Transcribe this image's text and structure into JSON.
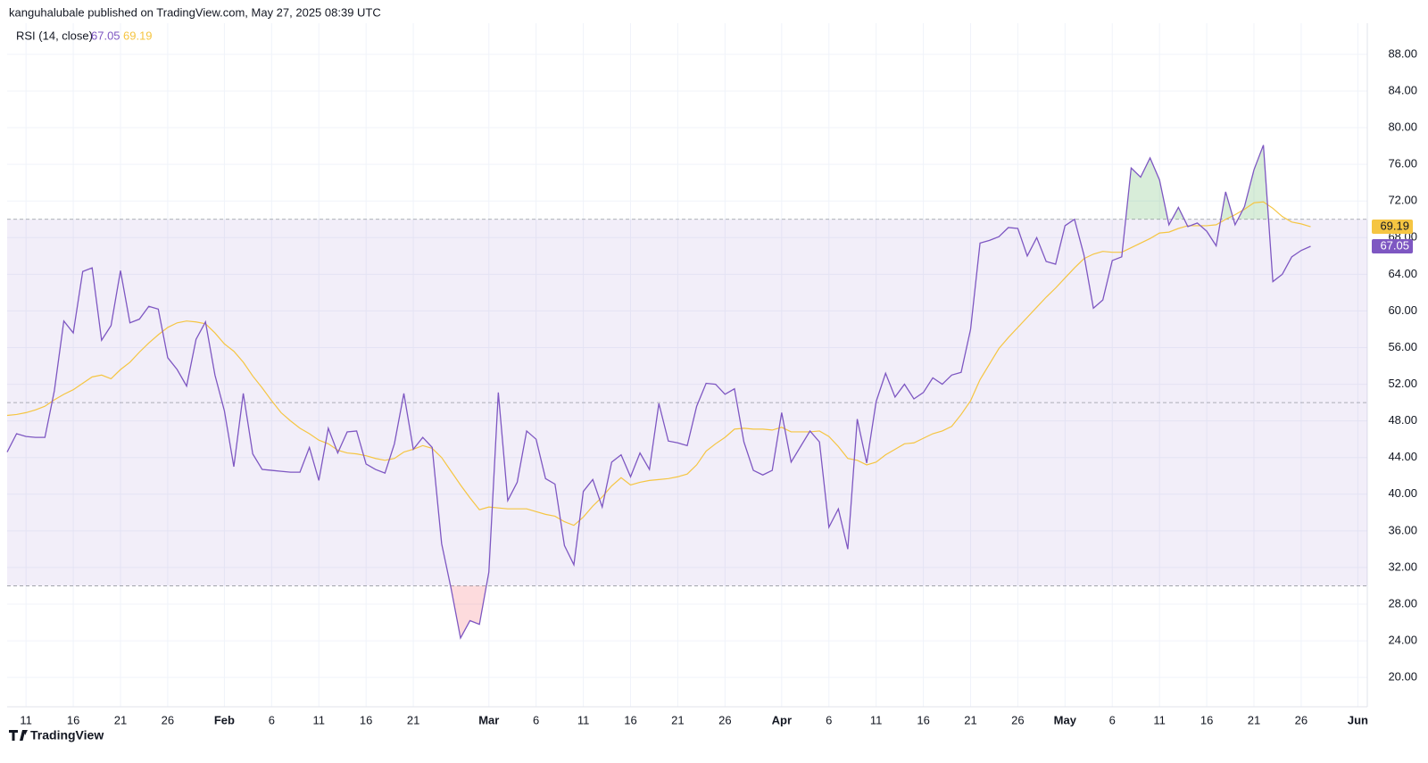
{
  "header": {
    "published": "kanguhalubale published on TradingView.com, May 27, 2025 08:39 UTC",
    "footer": "TradingView"
  },
  "chart_data": {
    "type": "line",
    "title": "RSI (14, close)",
    "x": [
      "01-09",
      "01-10",
      "01-11",
      "01-12",
      "01-13",
      "01-14",
      "01-15",
      "01-16",
      "01-17",
      "01-18",
      "01-19",
      "01-20",
      "01-21",
      "01-22",
      "01-23",
      "01-24",
      "01-25",
      "01-26",
      "01-27",
      "01-28",
      "01-29",
      "01-30",
      "01-31",
      "02-01",
      "02-02",
      "02-03",
      "02-04",
      "02-05",
      "02-06",
      "02-07",
      "02-08",
      "02-09",
      "02-10",
      "02-11",
      "02-12",
      "02-13",
      "02-14",
      "02-15",
      "02-16",
      "02-17",
      "02-18",
      "02-19",
      "02-20",
      "02-21",
      "02-22",
      "02-23",
      "02-24",
      "02-25",
      "02-26",
      "02-27",
      "02-28",
      "03-01",
      "03-02",
      "03-03",
      "03-04",
      "03-05",
      "03-06",
      "03-07",
      "03-08",
      "03-09",
      "03-10",
      "03-11",
      "03-12",
      "03-13",
      "03-14",
      "03-15",
      "03-16",
      "03-17",
      "03-18",
      "03-19",
      "03-20",
      "03-21",
      "03-22",
      "03-23",
      "03-24",
      "03-25",
      "03-26",
      "03-27",
      "03-28",
      "03-29",
      "03-30",
      "03-31",
      "04-01",
      "04-02",
      "04-03",
      "04-04",
      "04-05",
      "04-06",
      "04-07",
      "04-08",
      "04-09",
      "04-10",
      "04-11",
      "04-12",
      "04-13",
      "04-14",
      "04-15",
      "04-16",
      "04-17",
      "04-18",
      "04-19",
      "04-20",
      "04-21",
      "04-22",
      "04-23",
      "04-24",
      "04-25",
      "04-26",
      "04-27",
      "04-28",
      "04-29",
      "04-30",
      "05-01",
      "05-02",
      "05-03",
      "05-04",
      "05-05",
      "05-06",
      "05-07",
      "05-08",
      "05-09",
      "05-10",
      "05-11",
      "05-12",
      "05-13",
      "05-14",
      "05-15",
      "05-16",
      "05-17",
      "05-18",
      "05-19",
      "05-20",
      "05-21",
      "05-22",
      "05-23",
      "05-24",
      "05-25",
      "05-26",
      "05-27"
    ],
    "series": [
      {
        "color": "#7e57c2",
        "values": [
          44.6,
          46.6,
          46.3,
          46.2,
          46.2,
          51.3,
          58.9,
          57.6,
          64.3,
          64.7,
          56.8,
          58.4,
          64.4,
          58.7,
          59.1,
          60.5,
          60.2,
          54.9,
          53.6,
          51.8,
          56.9,
          58.8,
          53.0,
          49.1,
          43.0,
          51.0,
          44.4,
          42.7,
          42.6,
          42.5,
          42.4,
          42.4,
          45.1,
          41.5,
          47.2,
          44.5,
          46.8,
          46.9,
          43.3,
          42.7,
          42.3,
          45.5,
          51.0,
          44.9,
          46.2,
          45.1,
          34.6,
          29.7,
          24.3,
          26.2,
          25.8,
          31.5,
          51.1,
          39.3,
          41.3,
          46.9,
          46.0,
          41.7,
          41.1,
          34.4,
          32.3,
          40.3,
          41.6,
          38.6,
          43.5,
          44.3,
          41.9,
          44.5,
          42.7,
          49.9,
          45.8,
          45.6,
          45.3,
          49.6,
          52.1,
          52.0,
          50.9,
          51.5,
          45.7,
          42.6,
          42.1,
          42.6,
          48.9,
          43.5,
          45.2,
          46.9,
          45.7,
          36.4,
          38.4,
          34.0,
          48.2,
          43.4,
          50.1,
          53.2,
          50.6,
          52.0,
          50.4,
          51.1,
          52.7,
          52.0,
          53.0,
          53.3,
          58.0,
          67.4,
          67.7,
          68.1,
          69.1,
          69.0,
          66.0,
          68.0,
          65.4,
          65.1,
          69.3,
          70.0,
          66.1,
          60.3,
          61.2,
          65.5,
          65.9,
          75.6,
          74.6,
          76.7,
          74.3,
          69.4,
          71.3,
          69.2,
          69.6,
          68.7,
          67.1,
          73.0,
          69.4,
          71.4,
          75.4,
          78.1,
          63.2,
          64.0,
          65.9,
          66.6,
          67.05
        ]
      },
      {
        "color": "#f5c542",
        "values": [
          48.6,
          48.7,
          48.9,
          49.2,
          49.6,
          50.3,
          50.9,
          51.4,
          52.1,
          52.8,
          53.0,
          52.6,
          53.6,
          54.4,
          55.5,
          56.5,
          57.4,
          58.2,
          58.7,
          58.9,
          58.8,
          58.6,
          57.6,
          56.4,
          55.6,
          54.4,
          52.9,
          51.6,
          50.2,
          48.9,
          48.0,
          47.2,
          46.6,
          45.9,
          45.5,
          44.8,
          44.5,
          44.4,
          44.2,
          43.9,
          43.7,
          43.9,
          44.6,
          44.9,
          45.3,
          45.0,
          44.0,
          42.5,
          41.0,
          39.6,
          38.3,
          38.6,
          38.5,
          38.4,
          38.4,
          38.4,
          38.1,
          37.8,
          37.6,
          37.0,
          36.6,
          37.5,
          38.7,
          39.7,
          40.9,
          41.8,
          41.0,
          41.3,
          41.5,
          41.6,
          41.7,
          41.9,
          42.2,
          43.2,
          44.7,
          45.5,
          46.2,
          47.1,
          47.2,
          47.1,
          47.1,
          47.0,
          47.3,
          46.8,
          46.8,
          46.8,
          46.9,
          46.3,
          45.2,
          43.9,
          43.7,
          43.2,
          43.5,
          44.3,
          44.9,
          45.5,
          45.6,
          46.1,
          46.6,
          46.9,
          47.4,
          48.7,
          50.2,
          52.5,
          54.2,
          55.9,
          57.1,
          58.2,
          59.3,
          60.4,
          61.5,
          62.5,
          63.6,
          64.7,
          65.7,
          66.2,
          66.5,
          66.4,
          66.4,
          66.9,
          67.4,
          67.9,
          68.5,
          68.6,
          69.0,
          69.3,
          69.3,
          69.3,
          69.4,
          70.0,
          70.5,
          71.1,
          71.8,
          71.9,
          71.2,
          70.3,
          69.7,
          69.5,
          69.19
        ]
      }
    ],
    "bands": {
      "upper": 70,
      "middle": 50,
      "lower": 30
    },
    "xlim": [
      "01-09",
      "06-02"
    ],
    "xticks": [
      {
        "value": "01-11",
        "label": "11"
      },
      {
        "value": "01-16",
        "label": "16"
      },
      {
        "value": "01-21",
        "label": "21"
      },
      {
        "value": "01-26",
        "label": "26"
      },
      {
        "value": "02-01",
        "label": "Feb"
      },
      {
        "value": "02-06",
        "label": "6"
      },
      {
        "value": "02-11",
        "label": "11"
      },
      {
        "value": "02-16",
        "label": "16"
      },
      {
        "value": "02-21",
        "label": "21"
      },
      {
        "value": "03-01",
        "label": "Mar"
      },
      {
        "value": "03-06",
        "label": "6"
      },
      {
        "value": "03-11",
        "label": "11"
      },
      {
        "value": "03-16",
        "label": "16"
      },
      {
        "value": "03-21",
        "label": "21"
      },
      {
        "value": "03-26",
        "label": "26"
      },
      {
        "value": "04-01",
        "label": "Apr"
      },
      {
        "value": "04-06",
        "label": "6"
      },
      {
        "value": "04-11",
        "label": "11"
      },
      {
        "value": "04-16",
        "label": "16"
      },
      {
        "value": "04-21",
        "label": "21"
      },
      {
        "value": "04-26",
        "label": "26"
      },
      {
        "value": "05-01",
        "label": "May"
      },
      {
        "value": "05-06",
        "label": "6"
      },
      {
        "value": "05-11",
        "label": "11"
      },
      {
        "value": "05-16",
        "label": "16"
      },
      {
        "value": "05-21",
        "label": "21"
      },
      {
        "value": "05-26",
        "label": "26"
      },
      {
        "value": "06-01",
        "label": "Jun"
      }
    ],
    "ylim": [
      16.8,
      91.4
    ],
    "yticks": [
      {
        "value": 20,
        "label": "20.00"
      },
      {
        "value": 24,
        "label": "24.00"
      },
      {
        "value": 28,
        "label": "28.00"
      },
      {
        "value": 32,
        "label": "32.00"
      },
      {
        "value": 36,
        "label": "36.00"
      },
      {
        "value": 40,
        "label": "40.00"
      },
      {
        "value": 44,
        "label": "44.00"
      },
      {
        "value": 48,
        "label": "48.00"
      },
      {
        "value": 52,
        "label": "52.00"
      },
      {
        "value": 56,
        "label": "56.00"
      },
      {
        "value": 60,
        "label": "60.00"
      },
      {
        "value": 64,
        "label": "64.00"
      },
      {
        "value": 68,
        "label": "68.00"
      },
      {
        "value": 72,
        "label": "72.00"
      },
      {
        "value": 76,
        "label": "76.00"
      },
      {
        "value": 80,
        "label": "80.00"
      },
      {
        "value": 84,
        "label": "84.00"
      },
      {
        "value": 88,
        "label": "88.00"
      }
    ],
    "grid": true
  }
}
